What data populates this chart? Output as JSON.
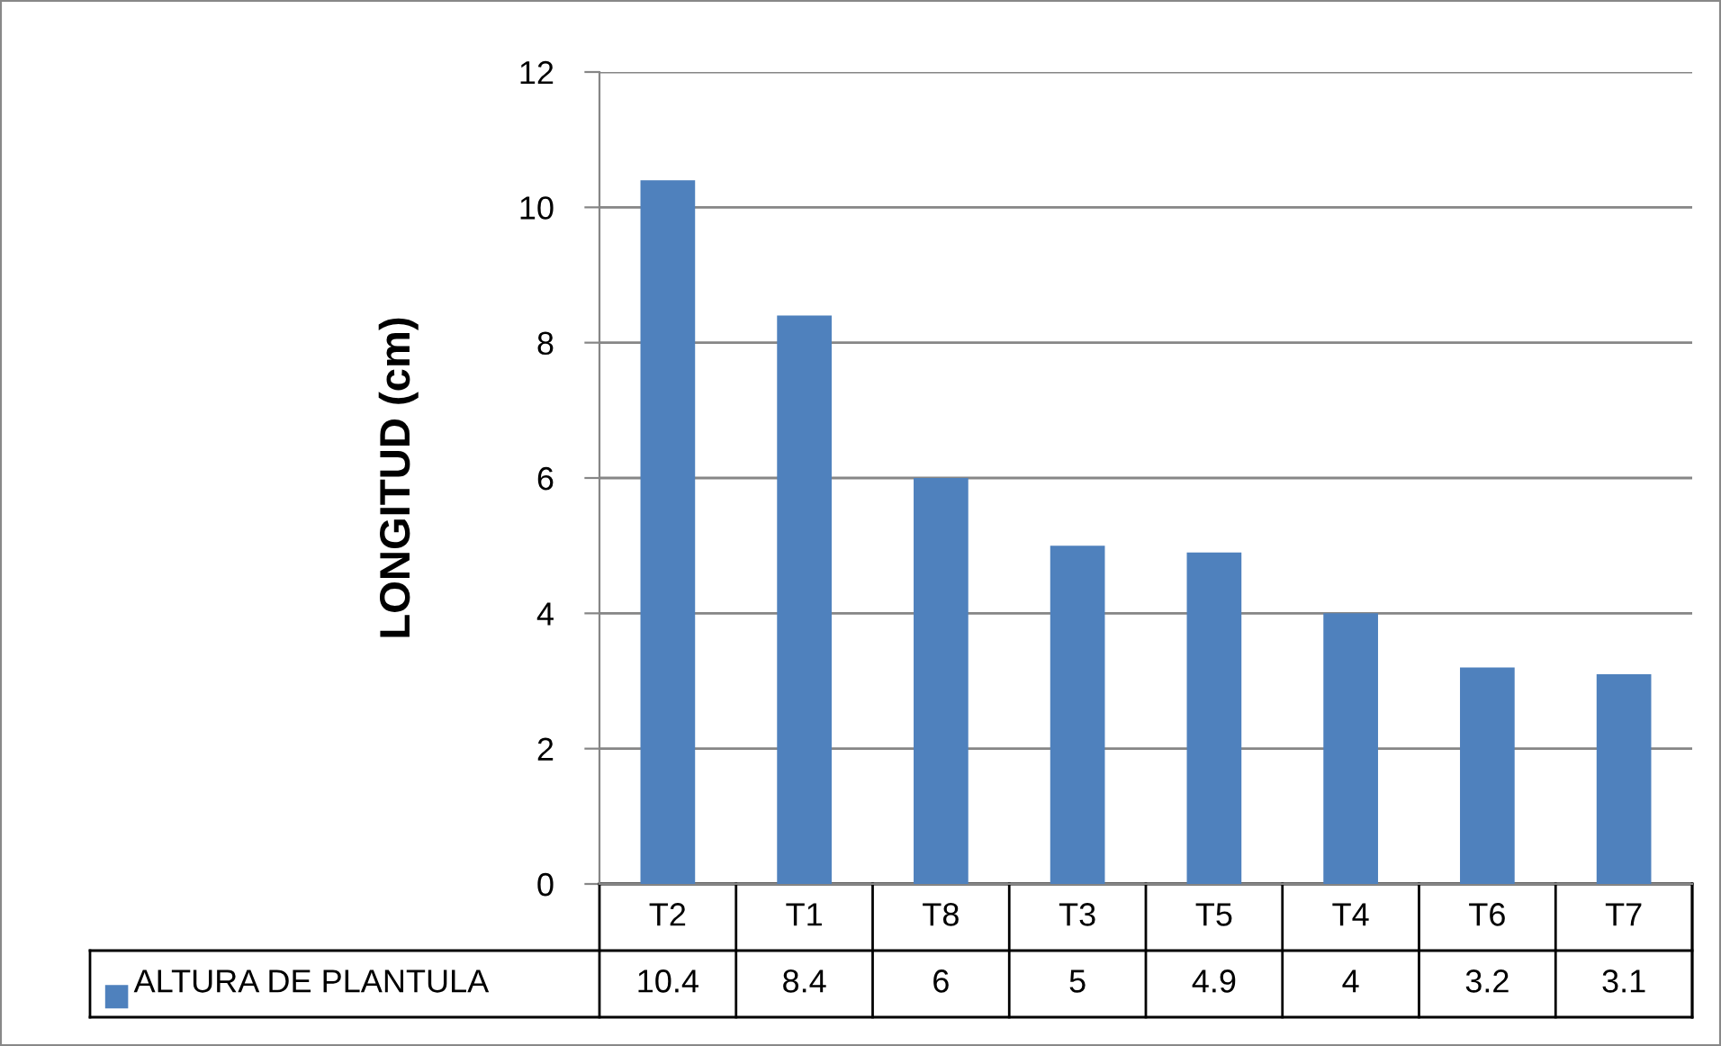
{
  "chart_data": {
    "type": "bar",
    "ylabel": "LONGITUD (cm)",
    "categories": [
      "T2",
      "T1",
      "T8",
      "T3",
      "T5",
      "T4",
      "T6",
      "T7"
    ],
    "series": [
      {
        "name": "ALTURA DE PLANTULA",
        "color": "#4f81bd",
        "values": [
          10.4,
          8.4,
          6,
          5,
          4.9,
          4,
          3.2,
          3.1
        ]
      }
    ],
    "ylim": [
      0,
      12
    ],
    "yticks": [
      0,
      2,
      4,
      6,
      8,
      10,
      12
    ],
    "grid": "y",
    "legend": "bottom",
    "data_labels": true
  }
}
